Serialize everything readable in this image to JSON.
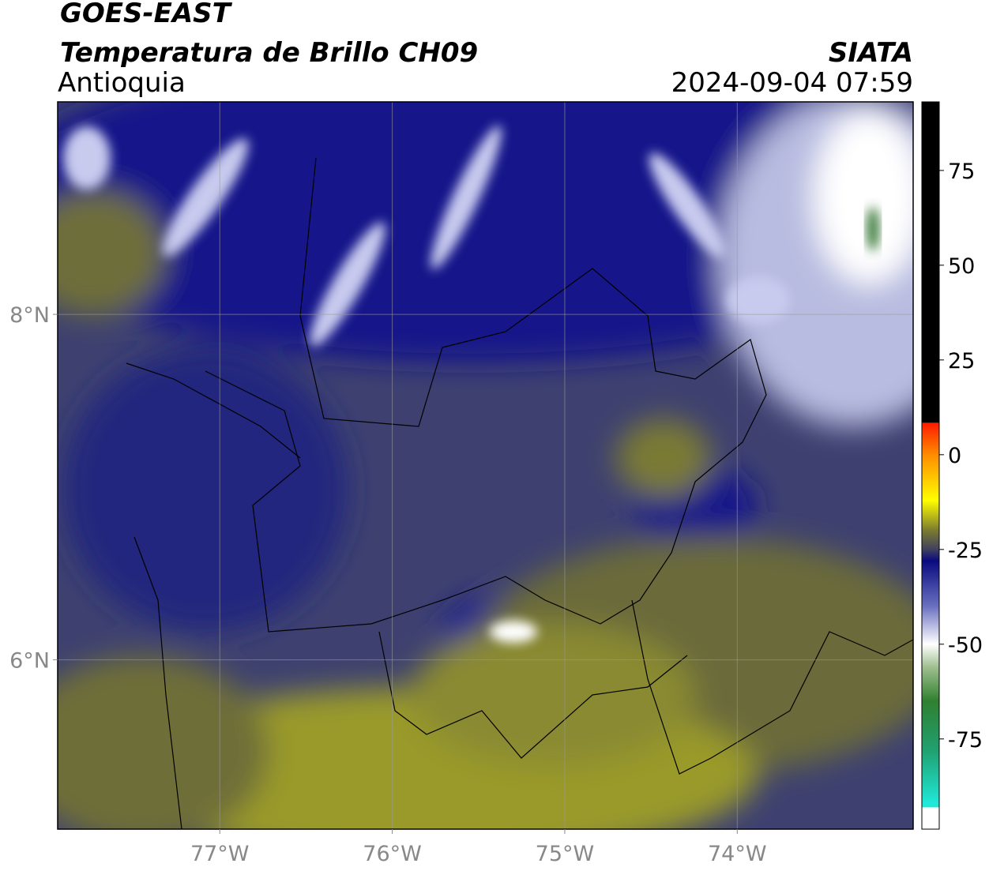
{
  "header": {
    "satellite": "GOES-EAST",
    "product": "Temperatura de Brillo CH09",
    "region": "Antioquia",
    "agency": "SIATA",
    "datetime": "2024-09-04 07:59"
  },
  "map": {
    "lon_range": [
      -77.94,
      -72.98
    ],
    "lat_range": [
      5.02,
      9.23
    ],
    "lon_ticks": [
      {
        "value": -77,
        "label": "77°W"
      },
      {
        "value": -76,
        "label": "76°W"
      },
      {
        "value": -75,
        "label": "75°W"
      },
      {
        "value": -74,
        "label": "74°W"
      }
    ],
    "lat_ticks": [
      {
        "value": 8,
        "label": "8°N"
      },
      {
        "value": 6,
        "label": "6°N"
      }
    ]
  },
  "colorbar": {
    "range": [
      -98.8,
      93.1
    ],
    "ticks": [
      75,
      50,
      25,
      0,
      -25,
      -50,
      -75
    ],
    "stops": [
      {
        "value": 93.1,
        "color": "#000000"
      },
      {
        "value": 8.5,
        "color": "#000000"
      },
      {
        "value": 8.4,
        "color": "#ff1a00"
      },
      {
        "value": 0,
        "color": "#ff8c00"
      },
      {
        "value": -12,
        "color": "#ffff00"
      },
      {
        "value": -20,
        "color": "#7a7a30"
      },
      {
        "value": -25,
        "color": "#404060"
      },
      {
        "value": -28,
        "color": "#0a0a80"
      },
      {
        "value": -40,
        "color": "#6a70c0"
      },
      {
        "value": -50,
        "color": "#ffffff"
      },
      {
        "value": -56,
        "color": "#a0c090"
      },
      {
        "value": -65,
        "color": "#308030"
      },
      {
        "value": -78,
        "color": "#20a070"
      },
      {
        "value": -92,
        "color": "#20e8d8"
      },
      {
        "value": -93,
        "color": "#20e8d8"
      },
      {
        "value": -93.1,
        "color": "#ffffff"
      },
      {
        "value": -98.8,
        "color": "#ffffff"
      }
    ]
  }
}
